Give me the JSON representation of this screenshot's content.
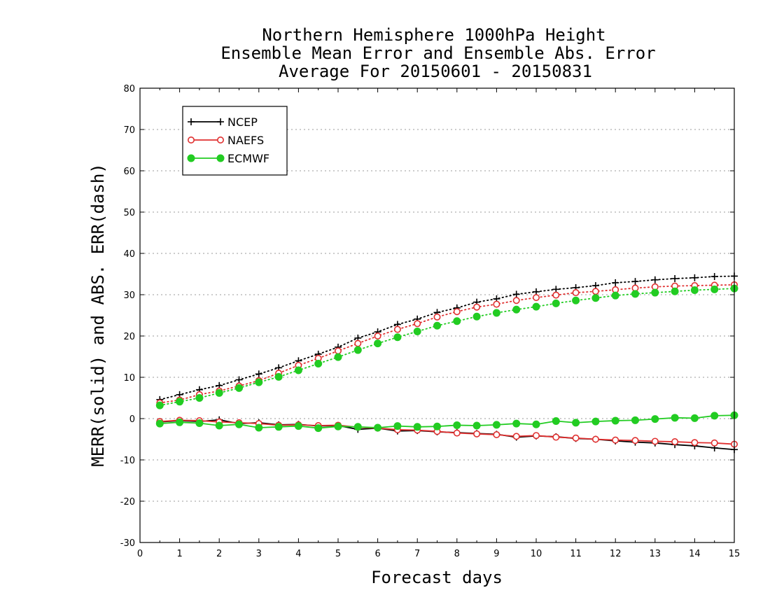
{
  "chart_data": {
    "type": "line",
    "title_lines": [
      "Northern Hemisphere 1000hPa Height",
      "Ensemble Mean Error and Ensemble Abs. Error",
      "Average For 20150601 - 20150831"
    ],
    "xlabel": "Forecast days",
    "ylabel": "MERR(solid) and ABS. ERR(dash)",
    "xlim": [
      0,
      15
    ],
    "ylim": [
      -30,
      80
    ],
    "x_ticks": [
      "0",
      "1",
      "2",
      "3",
      "4",
      "5",
      "6",
      "7",
      "8",
      "9",
      "10",
      "11",
      "12",
      "13",
      "14",
      "15"
    ],
    "y_ticks": [
      "80",
      "70",
      "60",
      "50",
      "40",
      "30",
      "20",
      "10",
      "0",
      "-10",
      "-20",
      "-30"
    ],
    "grid": "dotted horizontal",
    "legend_position": "top-left",
    "x": [
      0.5,
      1,
      1.5,
      2,
      2.5,
      3,
      3.5,
      4,
      4.5,
      5,
      5.5,
      6,
      6.5,
      7,
      7.5,
      8,
      8.5,
      9,
      9.5,
      10,
      10.5,
      11,
      11.5,
      12,
      12.5,
      13,
      13.5,
      14,
      14.5,
      15
    ],
    "series": [
      {
        "name": "NCEP",
        "color": "#000000",
        "marker": "plus",
        "merr": [
          -0.8,
          -0.5,
          -0.7,
          -0.3,
          -1.2,
          -1.0,
          -1.5,
          -1.4,
          -1.8,
          -1.7,
          -2.6,
          -2.3,
          -3.0,
          -2.9,
          -3.2,
          -3.4,
          -3.6,
          -3.8,
          -4.5,
          -4.2,
          -4.4,
          -4.8,
          -5.0,
          -5.4,
          -5.7,
          -5.9,
          -6.3,
          -6.6,
          -7.1,
          -7.5
        ],
        "abs_err": [
          4.6,
          5.8,
          7.0,
          8.0,
          9.4,
          10.8,
          12.3,
          14.0,
          15.6,
          17.3,
          19.5,
          21.0,
          22.8,
          24.1,
          25.7,
          26.8,
          28.2,
          29.0,
          30.1,
          30.7,
          31.3,
          31.7,
          32.2,
          32.9,
          33.2,
          33.6,
          33.9,
          34.1,
          34.4,
          34.5
        ]
      },
      {
        "name": "NAEFS",
        "color": "#e03030",
        "marker": "open-circle",
        "merr": [
          -0.7,
          -0.4,
          -0.5,
          -0.8,
          -1.0,
          -1.2,
          -1.6,
          -1.5,
          -1.7,
          -1.6,
          -2.1,
          -2.3,
          -2.7,
          -2.8,
          -3.1,
          -3.5,
          -3.7,
          -3.9,
          -4.3,
          -4.1,
          -4.5,
          -4.7,
          -5.0,
          -5.2,
          -5.3,
          -5.5,
          -5.6,
          -5.8,
          -5.9,
          -6.2
        ],
        "abs_err": [
          3.8,
          4.5,
          5.8,
          6.7,
          7.9,
          9.2,
          11.0,
          12.9,
          14.6,
          16.4,
          18.2,
          20.0,
          21.6,
          23.0,
          24.6,
          25.9,
          27.0,
          27.7,
          28.6,
          29.3,
          29.9,
          30.5,
          30.8,
          31.2,
          31.6,
          31.9,
          32.1,
          32.2,
          32.3,
          32.4
        ]
      },
      {
        "name": "ECMWF",
        "color": "#22cc22",
        "marker": "filled-circle",
        "merr": [
          -1.2,
          -0.9,
          -1.1,
          -1.7,
          -1.4,
          -2.2,
          -2.0,
          -1.8,
          -2.3,
          -1.9,
          -2.0,
          -2.2,
          -1.8,
          -2.0,
          -1.9,
          -1.6,
          -1.7,
          -1.5,
          -1.2,
          -1.4,
          -0.6,
          -1.0,
          -0.7,
          -0.5,
          -0.4,
          -0.1,
          0.2,
          0.1,
          0.7,
          0.8
        ],
        "abs_err": [
          3.2,
          4.1,
          5.0,
          6.2,
          7.4,
          8.8,
          10.1,
          11.7,
          13.3,
          14.9,
          16.6,
          18.2,
          19.7,
          21.1,
          22.5,
          23.6,
          24.7,
          25.6,
          26.4,
          27.1,
          27.9,
          28.6,
          29.2,
          29.8,
          30.2,
          30.5,
          30.8,
          31.1,
          31.3,
          31.5
        ]
      }
    ]
  }
}
